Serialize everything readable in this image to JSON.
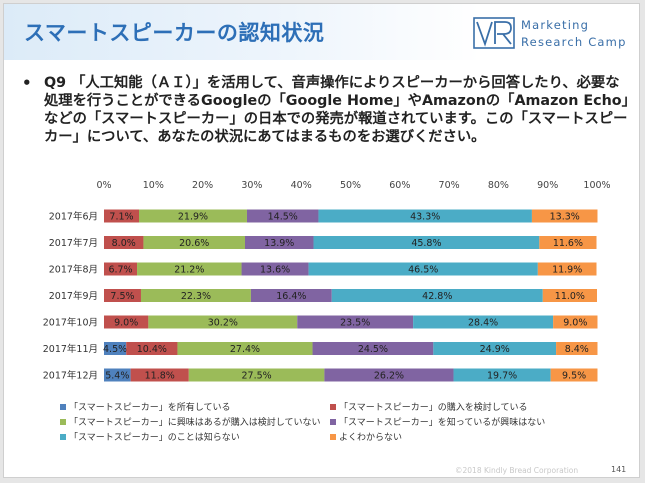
{
  "header": {
    "title": "スマートスピーカーの認知状況",
    "logo_line_1": "Marketing",
    "logo_line_2": "Research Camp"
  },
  "question": {
    "bullet": "•",
    "text": "Q9 「人工知能（ＡＩ）」を活用して、音声操作によりスピーカーから回答したり、必要な処理を行うことができるGoogleの「Google Home」やAmazonの「Amazon Echo」などの「スマートスピーカー」の日本での発売が報道されています。この「スマートスピーカー」について、あなたの状況にあてはまるものをお選びください。"
  },
  "colors": {
    "accent": "#2d6fb7",
    "series": [
      "#4f81bd",
      "#c0504d",
      "#9bbb59",
      "#8064a2",
      "#4bacc6",
      "#f79646"
    ]
  },
  "chart_data": {
    "type": "bar",
    "orientation": "horizontal",
    "stacked": "percent",
    "categories": [
      "2017年6月",
      "2017年7月",
      "2017年8月",
      "2017年9月",
      "2017年10月",
      "2017年11月",
      "2017年12月"
    ],
    "series": [
      {
        "name": "「スマートスピーカー」を所有している",
        "values": [
          0,
          0,
          0,
          0,
          0,
          4.5,
          5.4
        ],
        "labels": [
          "",
          "",
          "",
          "",
          "",
          "4.5%",
          "5.4%"
        ]
      },
      {
        "name": "「スマートスピーカー」の購入を検討している",
        "values": [
          7.1,
          8.0,
          6.7,
          7.5,
          9.0,
          10.4,
          11.8
        ],
        "labels": [
          "7.1%",
          "8.0%",
          "6.7%",
          "7.5%",
          "9.0%",
          "10.4%",
          "11.8%"
        ]
      },
      {
        "name": "「スマートスピーカー」に興味はあるが購入は検討していない",
        "values": [
          21.9,
          20.6,
          21.2,
          22.3,
          30.2,
          27.4,
          27.5
        ],
        "labels": [
          "21.9%",
          "20.6%",
          "21.2%",
          "22.3%",
          "30.2%",
          "27.4%",
          "27.5%"
        ]
      },
      {
        "name": "「スマートスピーカー」を知っているが興味はない",
        "values": [
          14.5,
          13.9,
          13.6,
          16.4,
          23.5,
          24.5,
          26.2
        ],
        "labels": [
          "14.5%",
          "13.9%",
          "13.6%",
          "16.4%",
          "23.5%",
          "24.5%",
          "26.2%"
        ]
      },
      {
        "name": "「スマートスピーカー」のことは知らない",
        "values": [
          43.3,
          45.8,
          46.5,
          42.8,
          28.4,
          24.9,
          19.7
        ],
        "labels": [
          "43.3%",
          "45.8%",
          "46.5%",
          "42.8%",
          "28.4%",
          "24.9%",
          "19.7%"
        ]
      },
      {
        "name": "よくわからない",
        "values": [
          13.3,
          11.6,
          11.9,
          11.0,
          9.0,
          8.4,
          9.5
        ],
        "labels": [
          "13.3%",
          "11.6%",
          "11.9%",
          "11.0%",
          "9.0%",
          "8.4%",
          "9.5%"
        ]
      }
    ],
    "x_ticks": [
      "0%",
      "10%",
      "20%",
      "30%",
      "40%",
      "50%",
      "60%",
      "70%",
      "80%",
      "90%",
      "100%"
    ],
    "xlim": [
      0,
      100
    ],
    "grid": false,
    "legend_position": "bottom"
  },
  "footer": {
    "copyright": "©2018 Kindly Bread Corporation",
    "page_number": "141"
  }
}
